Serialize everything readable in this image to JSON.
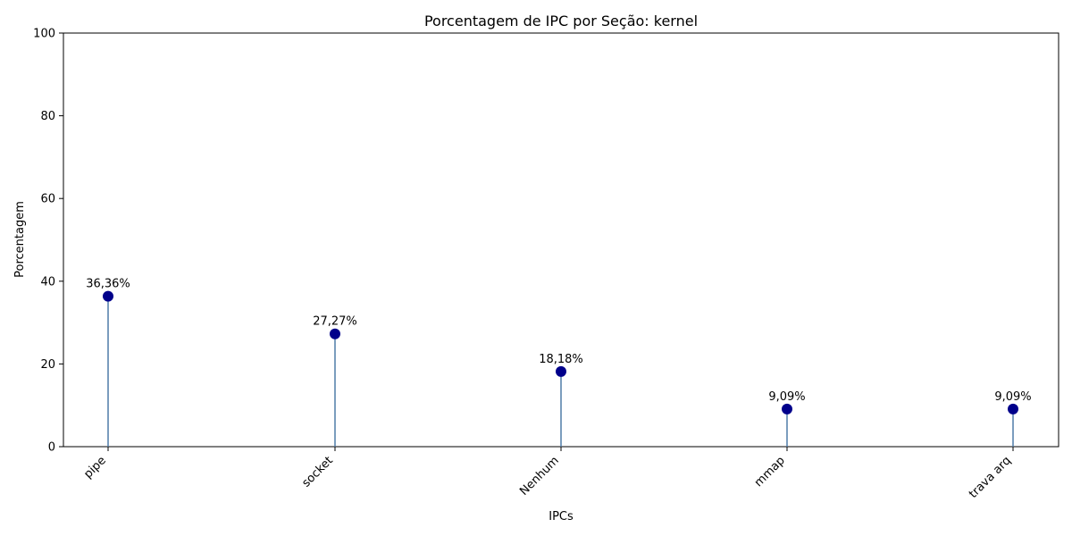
{
  "chart_data": {
    "type": "lollipop",
    "title": "Porcentagem de IPC por Seção: kernel",
    "xlabel": "IPCs",
    "ylabel": "Porcentagem",
    "categories": [
      "pipe",
      "socket",
      "Nenhum",
      "mmap",
      "trava arq"
    ],
    "values": [
      36.36,
      27.27,
      18.18,
      9.09,
      9.09
    ],
    "data_labels": [
      "36,36%",
      "27,27%",
      "18,18%",
      "9,09%",
      "9,09%"
    ],
    "ylim": [
      0,
      100
    ],
    "yticks": [
      0,
      20,
      40,
      60,
      80,
      100
    ],
    "grid": false,
    "colors": {
      "marker": "#00008b",
      "stem": "#4f7ca8"
    }
  }
}
